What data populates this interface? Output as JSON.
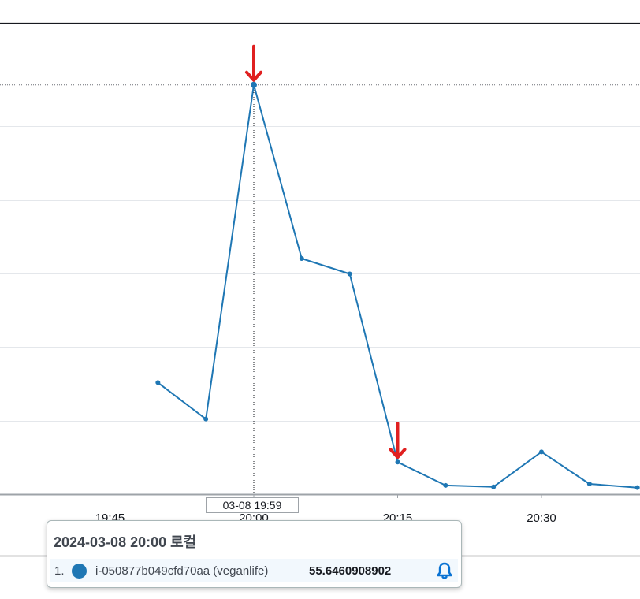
{
  "chart_data": {
    "type": "line",
    "x_ticks": [
      "19:45",
      "20:00",
      "20:15",
      "20:30"
    ],
    "x": [
      "19:50",
      "19:55",
      "20:00",
      "20:05",
      "20:10",
      "20:15",
      "20:20",
      "20:25",
      "20:30",
      "20:35",
      "20:40"
    ],
    "series": [
      {
        "name": "i-050877b049cfd70aa (veganlife)",
        "color": "#1f77b4",
        "values": [
          14.8,
          9.8,
          55.6,
          31.8,
          29.7,
          3.9,
          0.7,
          0.5,
          5.3,
          0.9,
          0.4
        ]
      }
    ],
    "ylim": [
      -0.5,
      64
    ],
    "threshold_line": 55.6,
    "grid": true,
    "annotations": [
      {
        "type": "arrow",
        "x": "20:00",
        "color": "#e02020"
      },
      {
        "type": "arrow",
        "x": "20:15",
        "color": "#e02020"
      }
    ]
  },
  "crosshair": {
    "x": "20:00",
    "label": "03-08 19:59"
  },
  "tooltip": {
    "title": "2024-03-08 20:00 로컬",
    "rows": [
      {
        "index": "1.",
        "name": "i-050877b049cfd70aa (veganlife)",
        "value": "55.6460908902",
        "color": "#1f77b4",
        "icon": "bell-icon"
      }
    ]
  }
}
